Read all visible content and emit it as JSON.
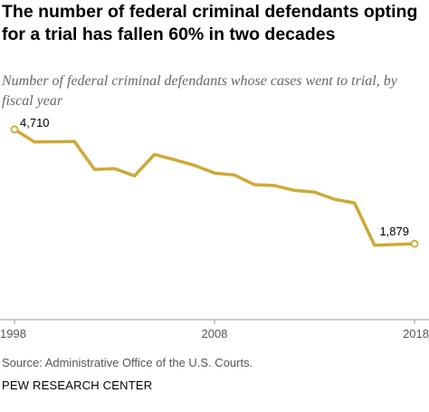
{
  "title": "The number of federal criminal defendants opting for a trial has fallen 60% in two decades",
  "subtitle": "Number of federal criminal defendants whose cases went to trial, by fiscal year",
  "source": "Source: Administrative Office of the U.S. Courts.",
  "footer": "PEW RESEARCH CENTER",
  "colors": {
    "line": "#cea836",
    "axis": "#999999",
    "text": "#555555",
    "label": "#000000"
  },
  "chart_data": {
    "type": "line",
    "x": [
      1998,
      1999,
      2000,
      2001,
      2002,
      2003,
      2004,
      2005,
      2006,
      2007,
      2008,
      2009,
      2010,
      2011,
      2012,
      2013,
      2014,
      2015,
      2016,
      2017,
      2018
    ],
    "values": [
      4710,
      4400,
      4405,
      4410,
      3720,
      3740,
      3560,
      4090,
      3960,
      3820,
      3630,
      3580,
      3340,
      3320,
      3200,
      3160,
      2980,
      2890,
      1840,
      1860,
      1879
    ],
    "x_ticks": [
      "1998",
      "2008",
      "2018"
    ],
    "point_labels": [
      {
        "x": 1998,
        "text": "4,710"
      },
      {
        "x": 2018,
        "text": "1,879"
      }
    ],
    "ylim": [
      0,
      5000
    ],
    "xlabel": "",
    "ylabel": "",
    "grid": false,
    "legend": "none"
  }
}
